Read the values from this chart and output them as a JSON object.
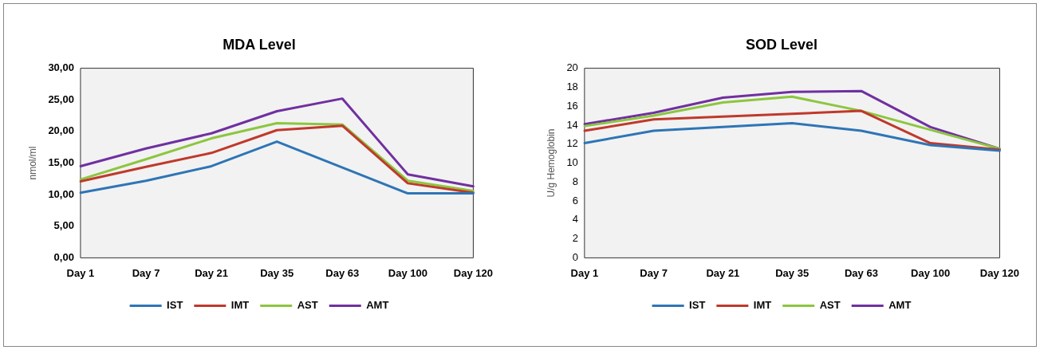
{
  "chart_data": [
    {
      "type": "line",
      "title": "MDA Level",
      "ylabel": "nmol/ml",
      "categories": [
        "Day 1",
        "Day 7",
        "Day 21",
        "Day 35",
        "Day 63",
        "Day 100",
        "Day 120"
      ],
      "series": [
        {
          "name": "IST",
          "color": "#2e75b6",
          "values": [
            10.3,
            12.2,
            14.5,
            18.4,
            14.3,
            10.2,
            10.2
          ]
        },
        {
          "name": "IMT",
          "color": "#c0392b",
          "values": [
            12.1,
            14.4,
            16.6,
            20.2,
            20.9,
            11.8,
            10.3
          ]
        },
        {
          "name": "AST",
          "color": "#8cc63f",
          "values": [
            12.4,
            15.6,
            18.9,
            21.3,
            21.1,
            12.2,
            10.6
          ]
        },
        {
          "name": "AMT",
          "color": "#7030a0",
          "values": [
            14.5,
            17.3,
            19.7,
            23.2,
            25.2,
            13.2,
            11.3
          ]
        }
      ],
      "ylim": [
        0,
        30
      ],
      "yticks": [
        {
          "value": 0,
          "label": "0,00"
        },
        {
          "value": 5,
          "label": "5,00"
        },
        {
          "value": 10,
          "label": "10,00"
        },
        {
          "value": 15,
          "label": "15,00"
        },
        {
          "value": 20,
          "label": "20,00"
        },
        {
          "value": 25,
          "label": "25,00"
        },
        {
          "value": 30,
          "label": "30,00"
        }
      ],
      "grid": false,
      "legend": "bottom",
      "marker": "none",
      "line_style": "solid"
    },
    {
      "type": "line",
      "title": "SOD Level",
      "ylabel": "U/g Hemoglobin",
      "categories": [
        "Day 1",
        "Day 7",
        "Day 21",
        "Day 35",
        "Day 63",
        "Day 100",
        "Day 120"
      ],
      "series": [
        {
          "name": "IST",
          "color": "#2e75b6",
          "values": [
            12.1,
            13.4,
            13.8,
            14.2,
            13.4,
            11.9,
            11.3
          ]
        },
        {
          "name": "IMT",
          "color": "#c0392b",
          "values": [
            13.4,
            14.6,
            14.9,
            15.2,
            15.5,
            12.1,
            11.4
          ]
        },
        {
          "name": "AST",
          "color": "#8cc63f",
          "values": [
            13.9,
            15.0,
            16.4,
            17.0,
            15.5,
            13.5,
            11.5
          ]
        },
        {
          "name": "AMT",
          "color": "#7030a0",
          "values": [
            14.1,
            15.3,
            16.9,
            17.5,
            17.6,
            13.8,
            11.5
          ]
        }
      ],
      "ylim": [
        0,
        20
      ],
      "yticks": [
        0,
        2,
        4,
        6,
        8,
        10,
        12,
        14,
        16,
        18,
        20
      ],
      "grid": false,
      "legend": "bottom",
      "marker": "none",
      "line_style": "solid"
    }
  ]
}
